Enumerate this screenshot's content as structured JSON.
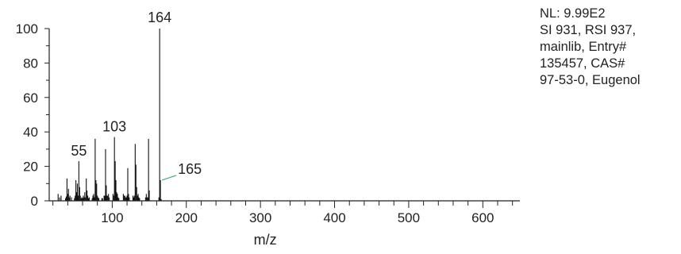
{
  "info": {
    "lines": [
      "NL: 9.99E2",
      "SI 931, RSI 937,",
      "mainlib, Entry#",
      "135457, CAS#",
      "97-53-0, Eugenol"
    ]
  },
  "chart_data": {
    "type": "bar",
    "title": "",
    "xlabel": "m/z",
    "ylabel": "",
    "xlim": [
      15,
      650
    ],
    "ylim": [
      0,
      100
    ],
    "x_ticks": [
      100,
      200,
      300,
      400,
      500,
      600
    ],
    "y_ticks": [
      0,
      20,
      40,
      60,
      80,
      100
    ],
    "grid": false,
    "legend": "none",
    "bar_color": "#111111",
    "annotation_leader_color": "#3cb371",
    "peak_labels": [
      {
        "mz": 55,
        "text": "55"
      },
      {
        "mz": 103,
        "text": "103"
      },
      {
        "mz": 164,
        "text": "164"
      },
      {
        "mz": 165,
        "text": "165"
      }
    ],
    "series": [
      {
        "x": [
          27,
          29,
          31,
          37,
          38,
          39,
          40,
          41,
          42,
          43,
          45,
          49,
          50,
          51,
          52,
          53,
          54,
          55,
          56,
          57,
          58,
          59,
          60,
          61,
          62,
          63,
          64,
          65,
          66,
          67,
          68,
          69,
          73,
          74,
          75,
          76,
          77,
          78,
          79,
          80,
          81,
          82,
          86,
          87,
          89,
          90,
          91,
          92,
          93,
          94,
          95,
          96,
          101,
          102,
          103,
          104,
          105,
          106,
          107,
          108,
          109,
          115,
          116,
          117,
          118,
          119,
          120,
          121,
          122,
          123,
          128,
          129,
          130,
          131,
          132,
          133,
          134,
          135,
          136,
          137,
          145,
          146,
          147,
          148,
          149,
          150,
          163,
          164,
          165,
          166
        ],
        "y": [
          4,
          2,
          3,
          1.5,
          2.5,
          13,
          4,
          7,
          2,
          3,
          2,
          1.5,
          3,
          12,
          5,
          10,
          3,
          23,
          8,
          3,
          1.5,
          2,
          1.5,
          3,
          2,
          5,
          2,
          13,
          6,
          3,
          1.5,
          2,
          1.5,
          3,
          4,
          2,
          36,
          12,
          10,
          3,
          2,
          1.5,
          1.5,
          1.5,
          3,
          3,
          30,
          9,
          3,
          3,
          4,
          2,
          4,
          3,
          37,
          23,
          12,
          5,
          4,
          2,
          1.5,
          4,
          3,
          3,
          2,
          2,
          3,
          19,
          4,
          2,
          3,
          2,
          3,
          33,
          21,
          8,
          3,
          4,
          2,
          1.5,
          2,
          4,
          2,
          2,
          36,
          6,
          2,
          100,
          12,
          1
        ]
      }
    ]
  }
}
